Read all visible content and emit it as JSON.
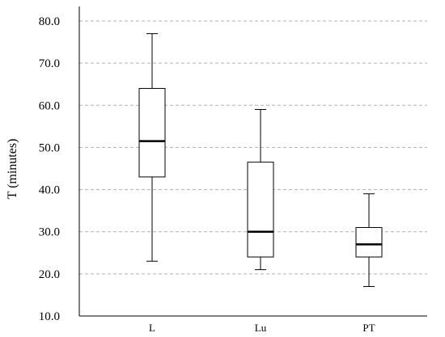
{
  "chart_data": {
    "type": "box",
    "title": "",
    "xlabel": "",
    "ylabel": "T (minutes)",
    "ylim": [
      10,
      85
    ],
    "yticks": [
      10,
      20,
      30,
      40,
      50,
      60,
      70,
      80
    ],
    "ytick_labels": [
      "10.0",
      "20.0",
      "30.0",
      "40.0",
      "50.0",
      "60.0",
      "70.0",
      "80.0"
    ],
    "grid": "horizontal-dashed",
    "categories": [
      "L",
      "Lu",
      "PT"
    ],
    "boxes": [
      {
        "category": "L",
        "min": 23.0,
        "q1": 43.0,
        "median": 51.5,
        "q3": 64.0,
        "max": 77.0
      },
      {
        "category": "Lu",
        "min": 21.0,
        "q1": 24.0,
        "median": 30.0,
        "q3": 46.5,
        "max": 59.0
      },
      {
        "category": "PT",
        "min": 17.0,
        "q1": 24.0,
        "median": 27.0,
        "q3": 31.0,
        "max": 39.0
      }
    ],
    "colors": {
      "box": "#000000",
      "grid": "#b0b0b0",
      "background": "#ffffff"
    }
  }
}
